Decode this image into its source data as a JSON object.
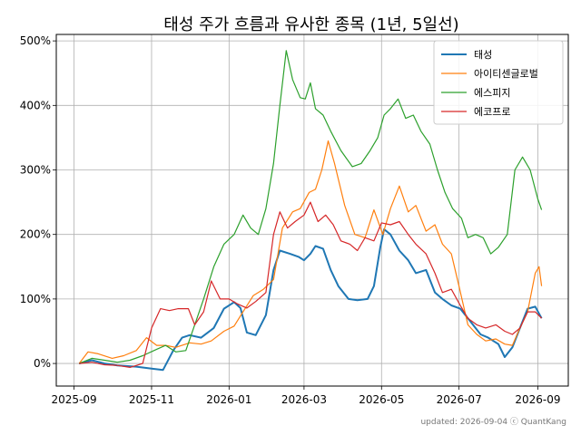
{
  "chart_data": {
    "type": "line",
    "title": "태성 주가 흐름과 유사한 종목 (1년, 5일선)",
    "xlabel": "",
    "ylabel": "",
    "x_ticks": [
      "2025-09",
      "2025-11",
      "2026-01",
      "2026-03",
      "2026-05",
      "2026-07",
      "2026-09"
    ],
    "y_ticks": [
      "0%",
      "100%",
      "200%",
      "300%",
      "400%",
      "500%"
    ],
    "xlim": [
      "2025-08-18",
      "2026-09-25"
    ],
    "ylim": [
      -35,
      510
    ],
    "grid": true,
    "legend_position": "top-right",
    "footer": "updated: 2026-09-04 ⓒ QuantKang",
    "series": [
      {
        "name": "태성",
        "color": "#1f77b4",
        "width": 2,
        "points": [
          [
            "2025-09-05",
            0
          ],
          [
            "2025-09-15",
            5
          ],
          [
            "2025-09-25",
            0
          ],
          [
            "2025-10-05",
            -3
          ],
          [
            "2025-10-20",
            -5
          ],
          [
            "2025-11-01",
            -8
          ],
          [
            "2025-11-10",
            -10
          ],
          [
            "2025-11-18",
            20
          ],
          [
            "2025-11-25",
            40
          ],
          [
            "2025-12-01",
            44
          ],
          [
            "2025-12-10",
            40
          ],
          [
            "2025-12-20",
            55
          ],
          [
            "2025-12-28",
            85
          ],
          [
            "2026-01-05",
            95
          ],
          [
            "2026-01-10",
            86
          ],
          [
            "2026-01-15",
            48
          ],
          [
            "2026-01-22",
            44
          ],
          [
            "2026-01-30",
            75
          ],
          [
            "2026-02-05",
            145
          ],
          [
            "2026-02-10",
            175
          ],
          [
            "2026-02-18",
            170
          ],
          [
            "2026-02-25",
            165
          ],
          [
            "2026-03-01",
            160
          ],
          [
            "2026-03-06",
            170
          ],
          [
            "2026-03-10",
            182
          ],
          [
            "2026-03-16",
            178
          ],
          [
            "2026-03-22",
            145
          ],
          [
            "2026-03-28",
            120
          ],
          [
            "2026-04-05",
            100
          ],
          [
            "2026-04-12",
            98
          ],
          [
            "2026-04-20",
            100
          ],
          [
            "2026-04-25",
            120
          ],
          [
            "2026-04-30",
            180
          ],
          [
            "2026-05-03",
            208
          ],
          [
            "2026-05-08",
            200
          ],
          [
            "2026-05-15",
            175
          ],
          [
            "2026-05-22",
            160
          ],
          [
            "2026-05-28",
            140
          ],
          [
            "2026-06-05",
            145
          ],
          [
            "2026-06-12",
            110
          ],
          [
            "2026-06-18",
            100
          ],
          [
            "2026-06-25",
            90
          ],
          [
            "2026-07-02",
            85
          ],
          [
            "2026-07-10",
            65
          ],
          [
            "2026-07-18",
            45
          ],
          [
            "2026-07-24",
            40
          ],
          [
            "2026-08-01",
            30
          ],
          [
            "2026-08-06",
            10
          ],
          [
            "2026-08-12",
            25
          ],
          [
            "2026-08-18",
            55
          ],
          [
            "2026-08-24",
            85
          ],
          [
            "2026-08-30",
            88
          ],
          [
            "2026-09-04",
            70
          ]
        ]
      },
      {
        "name": "아이티센글로벌",
        "color": "#ff7f0e",
        "width": 1.2,
        "points": [
          [
            "2025-09-05",
            0
          ],
          [
            "2025-09-12",
            18
          ],
          [
            "2025-09-20",
            15
          ],
          [
            "2025-10-01",
            8
          ],
          [
            "2025-10-10",
            12
          ],
          [
            "2025-10-20",
            20
          ],
          [
            "2025-10-28",
            40
          ],
          [
            "2025-11-05",
            28
          ],
          [
            "2025-11-12",
            28
          ],
          [
            "2025-11-20",
            25
          ],
          [
            "2025-12-01",
            32
          ],
          [
            "2025-12-10",
            30
          ],
          [
            "2025-12-18",
            35
          ],
          [
            "2025-12-28",
            50
          ],
          [
            "2026-01-05",
            58
          ],
          [
            "2026-01-12",
            80
          ],
          [
            "2026-01-20",
            105
          ],
          [
            "2026-01-28",
            115
          ],
          [
            "2026-02-05",
            130
          ],
          [
            "2026-02-12",
            210
          ],
          [
            "2026-02-20",
            235
          ],
          [
            "2026-02-26",
            240
          ],
          [
            "2026-03-05",
            265
          ],
          [
            "2026-03-10",
            270
          ],
          [
            "2026-03-15",
            300
          ],
          [
            "2026-03-20",
            345
          ],
          [
            "2026-03-25",
            310
          ],
          [
            "2026-04-02",
            245
          ],
          [
            "2026-04-10",
            200
          ],
          [
            "2026-04-18",
            195
          ],
          [
            "2026-04-25",
            238
          ],
          [
            "2026-05-02",
            200
          ],
          [
            "2026-05-08",
            240
          ],
          [
            "2026-05-15",
            275
          ],
          [
            "2026-05-22",
            235
          ],
          [
            "2026-05-28",
            245
          ],
          [
            "2026-06-05",
            205
          ],
          [
            "2026-06-12",
            215
          ],
          [
            "2026-06-18",
            185
          ],
          [
            "2026-06-25",
            170
          ],
          [
            "2026-07-01",
            120
          ],
          [
            "2026-07-08",
            60
          ],
          [
            "2026-07-15",
            45
          ],
          [
            "2026-07-22",
            35
          ],
          [
            "2026-07-30",
            38
          ],
          [
            "2026-08-06",
            30
          ],
          [
            "2026-08-12",
            28
          ],
          [
            "2026-08-18",
            55
          ],
          [
            "2026-08-24",
            80
          ],
          [
            "2026-08-30",
            140
          ],
          [
            "2026-09-02",
            150
          ],
          [
            "2026-09-04",
            120
          ]
        ]
      },
      {
        "name": "에스피지",
        "color": "#2ca02c",
        "width": 1.2,
        "points": [
          [
            "2025-09-05",
            0
          ],
          [
            "2025-09-15",
            8
          ],
          [
            "2025-09-25",
            5
          ],
          [
            "2025-10-05",
            2
          ],
          [
            "2025-10-15",
            5
          ],
          [
            "2025-10-25",
            12
          ],
          [
            "2025-11-05",
            22
          ],
          [
            "2025-11-12",
            28
          ],
          [
            "2025-11-20",
            18
          ],
          [
            "2025-11-28",
            20
          ],
          [
            "2025-12-05",
            60
          ],
          [
            "2025-12-12",
            100
          ],
          [
            "2025-12-20",
            150
          ],
          [
            "2025-12-28",
            185
          ],
          [
            "2026-01-05",
            200
          ],
          [
            "2026-01-12",
            230
          ],
          [
            "2026-01-18",
            210
          ],
          [
            "2026-01-24",
            200
          ],
          [
            "2026-01-30",
            240
          ],
          [
            "2026-02-05",
            310
          ],
          [
            "2026-02-10",
            400
          ],
          [
            "2026-02-15",
            485
          ],
          [
            "2026-02-20",
            440
          ],
          [
            "2026-02-26",
            412
          ],
          [
            "2026-03-02",
            410
          ],
          [
            "2026-03-06",
            435
          ],
          [
            "2026-03-10",
            395
          ],
          [
            "2026-03-16",
            385
          ],
          [
            "2026-03-22",
            360
          ],
          [
            "2026-03-30",
            330
          ],
          [
            "2026-04-08",
            305
          ],
          [
            "2026-04-15",
            310
          ],
          [
            "2026-04-22",
            330
          ],
          [
            "2026-04-28",
            350
          ],
          [
            "2026-05-03",
            385
          ],
          [
            "2026-05-08",
            395
          ],
          [
            "2026-05-14",
            410
          ],
          [
            "2026-05-20",
            380
          ],
          [
            "2026-05-26",
            385
          ],
          [
            "2026-06-01",
            360
          ],
          [
            "2026-06-08",
            340
          ],
          [
            "2026-06-14",
            300
          ],
          [
            "2026-06-20",
            265
          ],
          [
            "2026-06-26",
            240
          ],
          [
            "2026-07-03",
            225
          ],
          [
            "2026-07-08",
            195
          ],
          [
            "2026-07-14",
            200
          ],
          [
            "2026-07-20",
            195
          ],
          [
            "2026-07-26",
            170
          ],
          [
            "2026-08-01",
            180
          ],
          [
            "2026-08-08",
            200
          ],
          [
            "2026-08-14",
            300
          ],
          [
            "2026-08-20",
            320
          ],
          [
            "2026-08-26",
            300
          ],
          [
            "2026-09-01",
            255
          ],
          [
            "2026-09-04",
            238
          ]
        ]
      },
      {
        "name": "에코프로",
        "color": "#d62728",
        "width": 1.2,
        "points": [
          [
            "2025-09-05",
            0
          ],
          [
            "2025-09-15",
            2
          ],
          [
            "2025-09-25",
            -2
          ],
          [
            "2025-10-05",
            -3
          ],
          [
            "2025-10-15",
            -6
          ],
          [
            "2025-10-25",
            0
          ],
          [
            "2025-11-01",
            55
          ],
          [
            "2025-11-08",
            85
          ],
          [
            "2025-11-15",
            82
          ],
          [
            "2025-11-22",
            85
          ],
          [
            "2025-11-30",
            85
          ],
          [
            "2025-12-05",
            60
          ],
          [
            "2025-12-12",
            80
          ],
          [
            "2025-12-18",
            128
          ],
          [
            "2025-12-25",
            100
          ],
          [
            "2026-01-01",
            100
          ],
          [
            "2026-01-08",
            92
          ],
          [
            "2026-01-15",
            86
          ],
          [
            "2026-01-22",
            96
          ],
          [
            "2026-01-30",
            110
          ],
          [
            "2026-02-05",
            200
          ],
          [
            "2026-02-10",
            235
          ],
          [
            "2026-02-16",
            210
          ],
          [
            "2026-02-22",
            220
          ],
          [
            "2026-03-01",
            230
          ],
          [
            "2026-03-06",
            250
          ],
          [
            "2026-03-12",
            220
          ],
          [
            "2026-03-18",
            230
          ],
          [
            "2026-03-24",
            215
          ],
          [
            "2026-03-30",
            190
          ],
          [
            "2026-04-06",
            185
          ],
          [
            "2026-04-12",
            175
          ],
          [
            "2026-04-18",
            195
          ],
          [
            "2026-04-25",
            190
          ],
          [
            "2026-05-01",
            218
          ],
          [
            "2026-05-08",
            215
          ],
          [
            "2026-05-15",
            220
          ],
          [
            "2026-05-22",
            200
          ],
          [
            "2026-05-28",
            185
          ],
          [
            "2026-06-05",
            170
          ],
          [
            "2026-06-12",
            140
          ],
          [
            "2026-06-18",
            110
          ],
          [
            "2026-06-25",
            115
          ],
          [
            "2026-07-02",
            90
          ],
          [
            "2026-07-08",
            70
          ],
          [
            "2026-07-15",
            60
          ],
          [
            "2026-07-22",
            55
          ],
          [
            "2026-07-30",
            60
          ],
          [
            "2026-08-06",
            50
          ],
          [
            "2026-08-12",
            45
          ],
          [
            "2026-08-18",
            55
          ],
          [
            "2026-08-24",
            80
          ],
          [
            "2026-08-30",
            80
          ],
          [
            "2026-09-04",
            70
          ]
        ]
      }
    ]
  }
}
